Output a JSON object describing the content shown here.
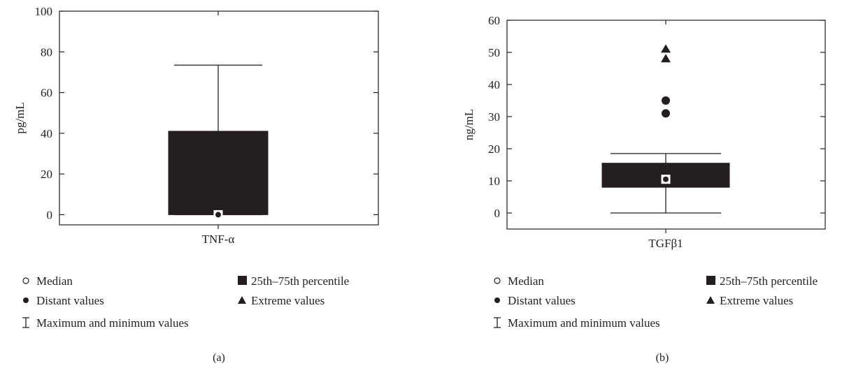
{
  "colors": {
    "box": "#231f20",
    "axis": "#231f20",
    "marker_fill": "#ffffff",
    "background": "#ffffff"
  },
  "chart_data": [
    {
      "type": "boxplot",
      "panel_label": "(a)",
      "ylabel": "pg/mL",
      "category": "TNF-α",
      "ylim": [
        -5,
        100
      ],
      "yticks": [
        0,
        20,
        40,
        60,
        80,
        100
      ],
      "box": {
        "q1": 0,
        "q3": 41,
        "median": 0,
        "min": 0,
        "max": 73.5
      },
      "distant_values": [],
      "extreme_values": [],
      "legend": {
        "median": "Median",
        "percentile": "25th–75th percentile",
        "distant": "Distant values",
        "extreme": "Extreme values",
        "range": "Maximum and minimum values"
      }
    },
    {
      "type": "boxplot",
      "panel_label": "(b)",
      "ylabel": "ng/mL",
      "category": "TGFβ1",
      "ylim": [
        -5,
        60
      ],
      "yticks": [
        0,
        10,
        20,
        30,
        40,
        50,
        60
      ],
      "box": {
        "q1": 8,
        "q3": 15.5,
        "median": 10.5,
        "min": 0,
        "max": 18.5
      },
      "distant_values": [
        31,
        35
      ],
      "extreme_values": [
        48,
        51
      ],
      "legend": {
        "median": "Median",
        "percentile": "25th–75th percentile",
        "distant": "Distant values",
        "extreme": "Extreme values",
        "range": "Maximum and minimum values"
      }
    }
  ]
}
